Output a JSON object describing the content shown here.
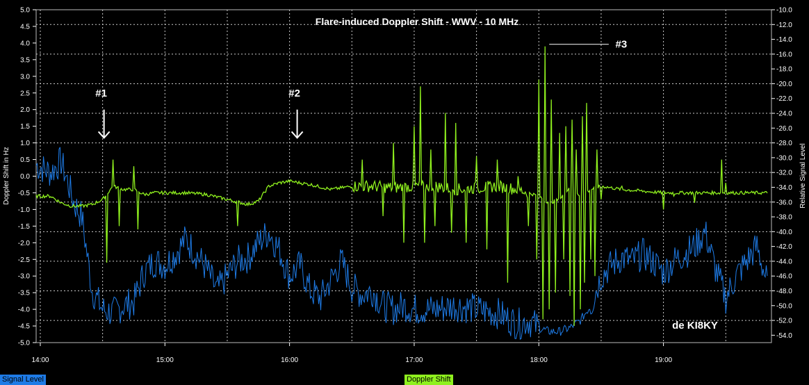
{
  "chart_data": {
    "type": "line",
    "title": "Flare-induced Doppler Shift - WWV - 10 MHz",
    "ylabel": "Doppler Shift in Hz",
    "y2label": "Relative Signal Level",
    "ylim": [
      -5.0,
      5.0
    ],
    "y2lim": [
      -55.0,
      -10.0
    ],
    "xlim": [
      "13:58",
      "19:52"
    ],
    "grid": true,
    "x_ticks": [
      "14:00",
      "15:00",
      "16:00",
      "17:00",
      "18:00",
      "19:00"
    ],
    "y_ticks": [
      "5.0",
      "4.5",
      "4.0",
      "3.5",
      "3.0",
      "2.5",
      "2.0",
      "1.5",
      "1.0",
      "0.5",
      "0.0",
      "-0.5",
      "-1.0",
      "-1.5",
      "-2.0",
      "-2.5",
      "-3.0",
      "-3.5",
      "-4.0",
      "-4.5",
      "-5.0"
    ],
    "y2_ticks": [
      "-10.0",
      "-12.0",
      "-14.0",
      "-16.0",
      "-18.0",
      "-20.0",
      "-22.0",
      "-24.0",
      "-26.0",
      "-28.0",
      "-30.0",
      "-32.0",
      "-34.0",
      "-36.0",
      "-38.0",
      "-40.0",
      "-42.0",
      "-44.0",
      "-46.0",
      "-48.0",
      "-50.0",
      "-52.0",
      "-54.0"
    ],
    "series": [
      {
        "name": "Signal Level",
        "axis": "right",
        "color": "#1e7be6",
        "x": [
          "13:58",
          "14:05",
          "14:10",
          "14:14",
          "14:16",
          "14:20",
          "14:25",
          "14:30",
          "14:35",
          "14:40",
          "14:45",
          "14:50",
          "14:55",
          "15:00",
          "15:05",
          "15:10",
          "15:15",
          "15:20",
          "15:25",
          "15:30",
          "15:35",
          "15:40",
          "15:45",
          "15:50",
          "15:55",
          "16:00",
          "16:05",
          "16:10",
          "16:15",
          "16:20",
          "16:25",
          "16:30",
          "16:35",
          "16:40",
          "16:45",
          "16:50",
          "16:55",
          "17:00",
          "17:10",
          "17:20",
          "17:30",
          "17:40",
          "17:50",
          "17:55",
          "18:00",
          "18:05",
          "18:10",
          "18:15",
          "18:20",
          "18:25",
          "18:30",
          "18:35",
          "18:40",
          "18:45",
          "18:50",
          "18:55",
          "19:00",
          "19:05",
          "19:10",
          "19:15",
          "19:20",
          "19:25",
          "19:30",
          "19:35",
          "19:40",
          "19:45",
          "19:50"
        ],
        "values": [
          -31.0,
          -32.0,
          -30.5,
          -34.0,
          -36.0,
          -38.0,
          -48.0,
          -50.5,
          -51.0,
          -50.0,
          -49.5,
          -45.5,
          -44.0,
          -44.5,
          -43.0,
          -41.0,
          -43.0,
          -45.0,
          -48.0,
          -46.0,
          -44.0,
          -43.5,
          -41.5,
          -40.0,
          -42.5,
          -46.0,
          -44.5,
          -48.0,
          -49.0,
          -46.5,
          -44.0,
          -47.5,
          -48.5,
          -48.0,
          -50.0,
          -50.5,
          -50.0,
          -50.5,
          -50.5,
          -50.0,
          -50.5,
          -51.0,
          -52.5,
          -52.0,
          -53.0,
          -53.5,
          -53.5,
          -53.0,
          -52.0,
          -50.0,
          -46.0,
          -44.5,
          -43.5,
          -44.0,
          -43.0,
          -44.0,
          -45.5,
          -44.0,
          -43.0,
          -42.0,
          -40.0,
          -45.0,
          -49.0,
          -46.0,
          -44.0,
          -42.0,
          -47.0
        ]
      },
      {
        "name": "Doppler Shift",
        "axis": "left",
        "color": "#8ff01e",
        "x": [
          "13:58",
          "14:05",
          "14:10",
          "14:15",
          "14:20",
          "14:25",
          "14:30",
          "14:35",
          "14:40",
          "14:45",
          "14:50",
          "14:55",
          "15:00",
          "15:10",
          "15:20",
          "15:30",
          "15:40",
          "15:45",
          "15:50",
          "15:55",
          "16:00",
          "16:10",
          "16:20",
          "16:30",
          "16:40",
          "16:50",
          "17:00",
          "17:10",
          "17:20",
          "17:30",
          "17:40",
          "17:50",
          "17:55",
          "18:00",
          "18:05",
          "18:10",
          "18:15",
          "18:20",
          "18:25",
          "18:30",
          "18:40",
          "18:50",
          "19:00",
          "19:10",
          "19:20",
          "19:30",
          "19:40",
          "19:50"
        ],
        "values": [
          -0.6,
          -0.6,
          -0.8,
          -0.9,
          -0.9,
          -0.85,
          -0.7,
          -0.3,
          -0.4,
          -0.4,
          -0.55,
          -0.5,
          -0.5,
          -0.5,
          -0.55,
          -0.7,
          -0.85,
          -0.75,
          -0.3,
          -0.2,
          -0.15,
          -0.25,
          -0.4,
          -0.3,
          -0.3,
          -0.35,
          -0.3,
          -0.3,
          -0.4,
          -0.35,
          -0.3,
          -0.4,
          -0.5,
          -0.6,
          -0.8,
          -0.7,
          -0.3,
          -0.6,
          -0.4,
          -0.3,
          -0.4,
          -0.45,
          -0.5,
          -0.5,
          -0.5,
          -0.5,
          -0.5,
          -0.5
        ]
      }
    ],
    "doppler_spikes": [
      {
        "t": "14:32",
        "v": -2.6
      },
      {
        "t": "14:35",
        "v": 0.5
      },
      {
        "t": "14:38",
        "v": -1.5
      },
      {
        "t": "14:45",
        "v": 0.3
      },
      {
        "t": "14:47",
        "v": -1.6
      },
      {
        "t": "15:35",
        "v": -1.5
      },
      {
        "t": "16:35",
        "v": 0.5
      },
      {
        "t": "16:45",
        "v": -1.2
      },
      {
        "t": "16:50",
        "v": 1.0
      },
      {
        "t": "16:55",
        "v": -2.0
      },
      {
        "t": "17:00",
        "v": 1.5
      },
      {
        "t": "17:03",
        "v": 2.7
      },
      {
        "t": "17:05",
        "v": -2.0
      },
      {
        "t": "17:08",
        "v": 0.8
      },
      {
        "t": "17:10",
        "v": -1.5
      },
      {
        "t": "17:15",
        "v": 1.9
      },
      {
        "t": "17:18",
        "v": -1.7
      },
      {
        "t": "17:20",
        "v": 1.6
      },
      {
        "t": "17:25",
        "v": -2.0
      },
      {
        "t": "17:30",
        "v": 0.6
      },
      {
        "t": "17:35",
        "v": -2.2
      },
      {
        "t": "17:40",
        "v": 0.5
      },
      {
        "t": "17:45",
        "v": -3.2
      },
      {
        "t": "17:50",
        "v": 0.0
      },
      {
        "t": "17:55",
        "v": -1.5
      },
      {
        "t": "17:59",
        "v": -2.5
      },
      {
        "t": "18:00",
        "v": 2.9
      },
      {
        "t": "18:02",
        "v": -4.3
      },
      {
        "t": "18:03",
        "v": 3.9
      },
      {
        "t": "18:05",
        "v": -4.0
      },
      {
        "t": "18:06",
        "v": 2.3
      },
      {
        "t": "18:08",
        "v": -3.5
      },
      {
        "t": "18:10",
        "v": 1.3
      },
      {
        "t": "18:12",
        "v": -2.5
      },
      {
        "t": "18:13",
        "v": 1.5
      },
      {
        "t": "18:15",
        "v": -3.6
      },
      {
        "t": "18:16",
        "v": 1.7
      },
      {
        "t": "18:17",
        "v": -4.5
      },
      {
        "t": "18:18",
        "v": 0.8
      },
      {
        "t": "18:20",
        "v": -4.0
      },
      {
        "t": "18:21",
        "v": 1.8
      },
      {
        "t": "18:22",
        "v": -3.2
      },
      {
        "t": "18:23",
        "v": 2.2
      },
      {
        "t": "18:25",
        "v": -2.5
      },
      {
        "t": "18:27",
        "v": -3.0
      },
      {
        "t": "18:28",
        "v": 0.8
      },
      {
        "t": "18:30",
        "v": -0.7
      },
      {
        "t": "18:40",
        "v": -0.3
      },
      {
        "t": "19:00",
        "v": -1.0
      },
      {
        "t": "19:05",
        "v": -0.6
      },
      {
        "t": "19:15",
        "v": -0.8
      },
      {
        "t": "19:28",
        "v": 0.5
      },
      {
        "t": "19:30",
        "v": -0.2
      }
    ],
    "annotations": [
      {
        "text": "#1",
        "t": "14:30",
        "label_v": 2.5,
        "arrow_from": 2.0,
        "arrow_to": 1.15
      },
      {
        "text": "#2",
        "t": "16:03",
        "label_v": 2.5,
        "arrow_from": 2.0,
        "arrow_to": 1.15
      },
      {
        "text": "#3",
        "t": "18:35",
        "label_v": 3.9,
        "leader_from_t": "18:05"
      }
    ],
    "watermark": "de KI8KY"
  },
  "legend": {
    "signal_label": "Signal Level",
    "signal_color": "#1e7be6",
    "doppler_label": "Doppler Shift",
    "doppler_color": "#8ff01e"
  }
}
